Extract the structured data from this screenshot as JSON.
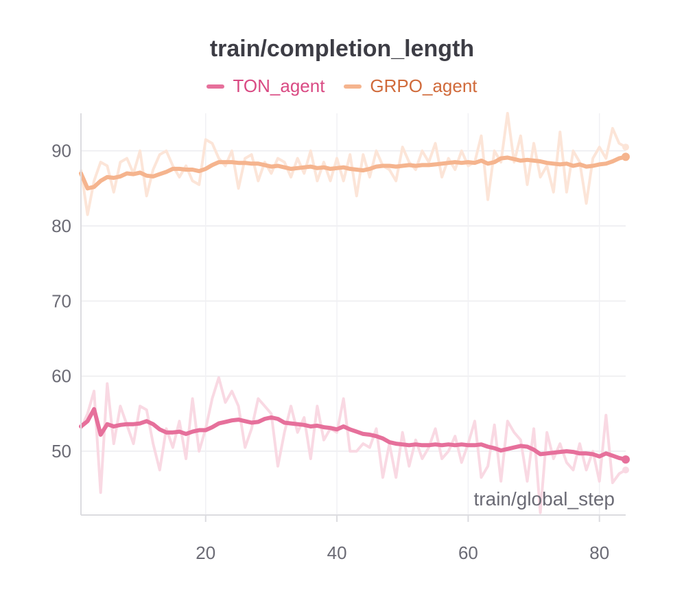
{
  "chart_data": {
    "type": "line",
    "title": "train/completion_length",
    "xlabel": "train/global_step",
    "ylabel": "",
    "xlim": [
      1,
      84
    ],
    "ylim": [
      41.5,
      95
    ],
    "x_ticks": [
      20,
      40,
      60,
      80
    ],
    "y_ticks": [
      50,
      60,
      70,
      80,
      90
    ],
    "grid": true,
    "legend_position": "top-center",
    "x": [
      1,
      2,
      3,
      4,
      5,
      6,
      7,
      8,
      9,
      10,
      11,
      12,
      13,
      14,
      15,
      16,
      17,
      18,
      19,
      20,
      21,
      22,
      23,
      24,
      25,
      26,
      27,
      28,
      29,
      30,
      31,
      32,
      33,
      34,
      35,
      36,
      37,
      38,
      39,
      40,
      41,
      42,
      43,
      44,
      45,
      46,
      47,
      48,
      49,
      50,
      51,
      52,
      53,
      54,
      55,
      56,
      57,
      58,
      59,
      60,
      61,
      62,
      63,
      64,
      65,
      66,
      67,
      68,
      69,
      70,
      71,
      72,
      73,
      74,
      75,
      76,
      77,
      78,
      79,
      80,
      81,
      82,
      83,
      84
    ],
    "series": [
      {
        "name": "TON_agent",
        "color": "#e6709b",
        "raw_color": "#f9d9e3",
        "smoothed": [
          53.3,
          54.0,
          55.6,
          52.2,
          53.6,
          53.3,
          53.5,
          53.6,
          53.6,
          53.7,
          54.0,
          53.6,
          52.9,
          52.5,
          52.5,
          52.6,
          52.3,
          52.6,
          52.8,
          52.8,
          53.2,
          53.7,
          53.9,
          54.1,
          54.2,
          54.0,
          53.8,
          53.9,
          54.3,
          54.5,
          54.3,
          53.8,
          53.7,
          53.6,
          53.5,
          53.3,
          53.4,
          53.2,
          53.1,
          52.9,
          53.3,
          52.9,
          52.6,
          52.3,
          52.2,
          52.0,
          51.7,
          51.2,
          51.0,
          50.9,
          50.8,
          50.9,
          50.8,
          50.8,
          50.9,
          50.8,
          50.9,
          50.8,
          50.9,
          50.8,
          50.8,
          50.9,
          50.6,
          50.4,
          50.1,
          50.3,
          50.5,
          50.7,
          50.6,
          50.2,
          49.6,
          49.7,
          49.8,
          49.9,
          50.0,
          49.9,
          49.7,
          49.7,
          49.6,
          49.3,
          49.7,
          49.4,
          49.1,
          48.9
        ],
        "raw": [
          53.0,
          55.0,
          58.0,
          44.5,
          59.0,
          51.0,
          56.0,
          53.5,
          51.0,
          56.0,
          55.5,
          51.0,
          47.5,
          53.0,
          50.5,
          54.0,
          49.0,
          57.0,
          50.0,
          53.0,
          57.0,
          59.8,
          56.5,
          58.0,
          56.0,
          50.5,
          53.0,
          57.0,
          56.0,
          55.0,
          48.0,
          52.5,
          56.0,
          52.5,
          54.5,
          49.0,
          56.0,
          51.5,
          53.0,
          52.5,
          57.0,
          50.0,
          50.0,
          51.0,
          50.5,
          53.0,
          46.5,
          51.0,
          46.5,
          52.5,
          48.0,
          51.5,
          49.0,
          50.5,
          53.0,
          49.0,
          50.0,
          52.0,
          48.5,
          51.0,
          54.0,
          46.5,
          48.0,
          53.5,
          46.0,
          54.0,
          52.5,
          51.5,
          46.0,
          53.0,
          41.8,
          52.5,
          49.0,
          51.0,
          48.5,
          47.5,
          51.0,
          47.5,
          50.0,
          46.0,
          54.8,
          45.8,
          47.0,
          47.5
        ]
      },
      {
        "name": "GRPO_agent",
        "color": "#f5b48e",
        "raw_color": "#fce5d8",
        "smoothed": [
          87.0,
          85.0,
          85.2,
          86.0,
          86.5,
          86.4,
          86.6,
          87.0,
          86.9,
          87.1,
          86.7,
          86.6,
          86.9,
          87.2,
          87.6,
          87.6,
          87.5,
          87.5,
          87.3,
          87.6,
          88.1,
          88.5,
          88.5,
          88.5,
          88.4,
          88.4,
          88.3,
          88.3,
          88.1,
          87.9,
          88.0,
          87.8,
          87.6,
          87.7,
          87.8,
          87.9,
          87.7,
          87.8,
          87.6,
          87.7,
          87.8,
          87.6,
          87.5,
          87.4,
          87.6,
          87.9,
          88.0,
          88.0,
          87.9,
          88.0,
          88.1,
          88.0,
          88.1,
          88.1,
          88.2,
          88.3,
          88.4,
          88.5,
          88.4,
          88.5,
          88.4,
          88.7,
          88.3,
          88.5,
          89.0,
          89.1,
          88.9,
          88.7,
          88.8,
          88.7,
          88.6,
          88.4,
          88.3,
          88.2,
          88.3,
          88.0,
          88.2,
          87.9,
          88.0,
          88.2,
          88.3,
          88.6,
          89.0,
          89.2
        ],
        "raw": [
          87.5,
          81.5,
          86.0,
          88.5,
          88.0,
          84.5,
          88.5,
          89.0,
          87.0,
          90.0,
          84.0,
          87.5,
          89.5,
          90.0,
          88.0,
          86.5,
          88.0,
          86.0,
          85.5,
          91.5,
          91.0,
          89.0,
          88.0,
          90.0,
          85.0,
          89.0,
          89.5,
          86.0,
          88.5,
          87.0,
          89.0,
          88.5,
          86.5,
          89.0,
          87.0,
          90.0,
          86.0,
          88.5,
          86.0,
          89.0,
          86.0,
          89.5,
          84.0,
          89.5,
          86.5,
          90.0,
          88.0,
          87.5,
          86.0,
          90.5,
          88.5,
          87.5,
          90.0,
          88.5,
          91.0,
          86.5,
          89.0,
          87.5,
          90.0,
          88.0,
          88.5,
          92.0,
          83.5,
          90.0,
          88.5,
          95.0,
          88.5,
          92.0,
          85.5,
          91.0,
          86.5,
          88.0,
          84.5,
          92.5,
          84.5,
          90.0,
          88.5,
          83.0,
          89.0,
          90.5,
          89.0,
          93.0,
          91.0,
          90.5
        ]
      }
    ]
  }
}
